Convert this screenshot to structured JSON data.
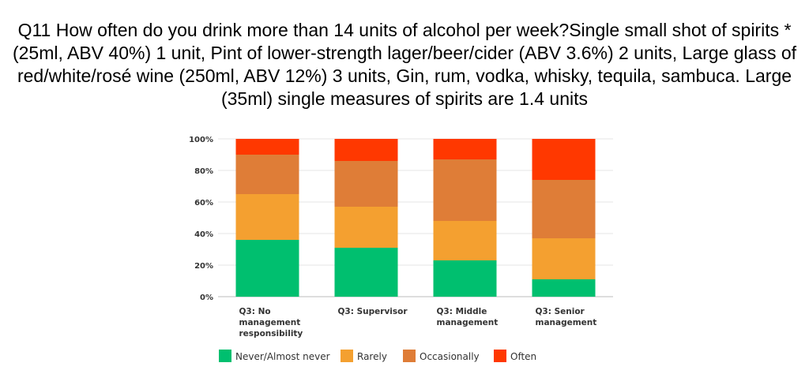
{
  "title": "Q11 How often do you drink more than 14 units of alcohol per week?Single small shot of spirits * (25ml, ABV 40%) 1 unit, Pint of lower-strength lager/beer/cider (ABV 3.6%) 2 units, Large glass of red/white/rosé wine (250ml, ABV 12%) 3 units, Gin, rum, vodka, whisky, tequila, sambuca. Large (35ml) single measures of spirits are 1.4 units",
  "chart_data": {
    "type": "bar",
    "stacked": true,
    "orientation": "vertical",
    "ylim": [
      0,
      100
    ],
    "yticks": [
      "0%",
      "20%",
      "40%",
      "60%",
      "80%",
      "100%"
    ],
    "ytick_values": [
      0,
      20,
      40,
      60,
      80,
      100
    ],
    "grid": true,
    "legend_position": "bottom",
    "categories": [
      [
        "Q3: No",
        "management",
        "responsibility"
      ],
      [
        "Q3: Supervisor"
      ],
      [
        "Q3: Middle",
        "management"
      ],
      [
        "Q3: Senior",
        "management"
      ]
    ],
    "series": [
      {
        "name": "Never/Almost never",
        "color": "#00BF6F",
        "values": [
          36,
          31,
          23,
          11
        ]
      },
      {
        "name": "Rarely",
        "color": "#F4A030",
        "values": [
          29,
          26,
          25,
          26
        ]
      },
      {
        "name": "Occasionally",
        "color": "#DF7D37",
        "values": [
          25,
          29,
          39,
          37
        ]
      },
      {
        "name": "Often",
        "color": "#FF3800",
        "values": [
          10,
          14,
          13,
          26
        ]
      }
    ]
  }
}
